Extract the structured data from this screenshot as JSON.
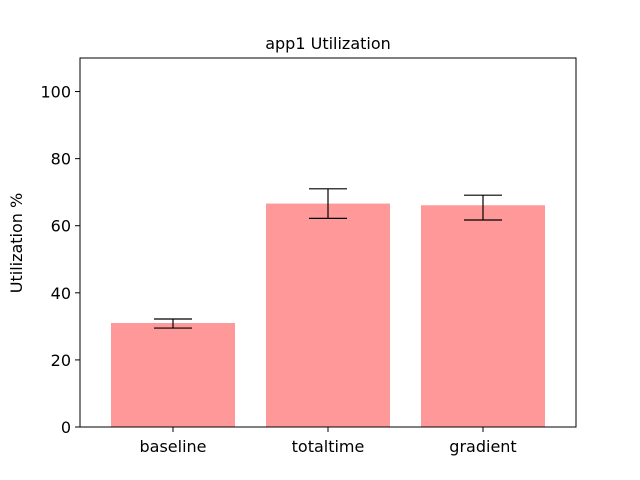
{
  "chart_data": {
    "type": "bar",
    "title": "app1 Utilization",
    "xlabel": "",
    "ylabel": "Utilization %",
    "categories": [
      "baseline",
      "totaltime",
      "gradient"
    ],
    "values": [
      31.0,
      66.6,
      66.1
    ],
    "error_low": [
      29.5,
      62.2,
      61.7
    ],
    "error_high": [
      32.2,
      71.0,
      69.1
    ],
    "ylim": [
      0,
      110
    ],
    "yticks": [
      0,
      20,
      40,
      60,
      80,
      100
    ],
    "bar_color": "#ff9999",
    "error_color": "#000000",
    "grid": false,
    "legend": "none"
  }
}
